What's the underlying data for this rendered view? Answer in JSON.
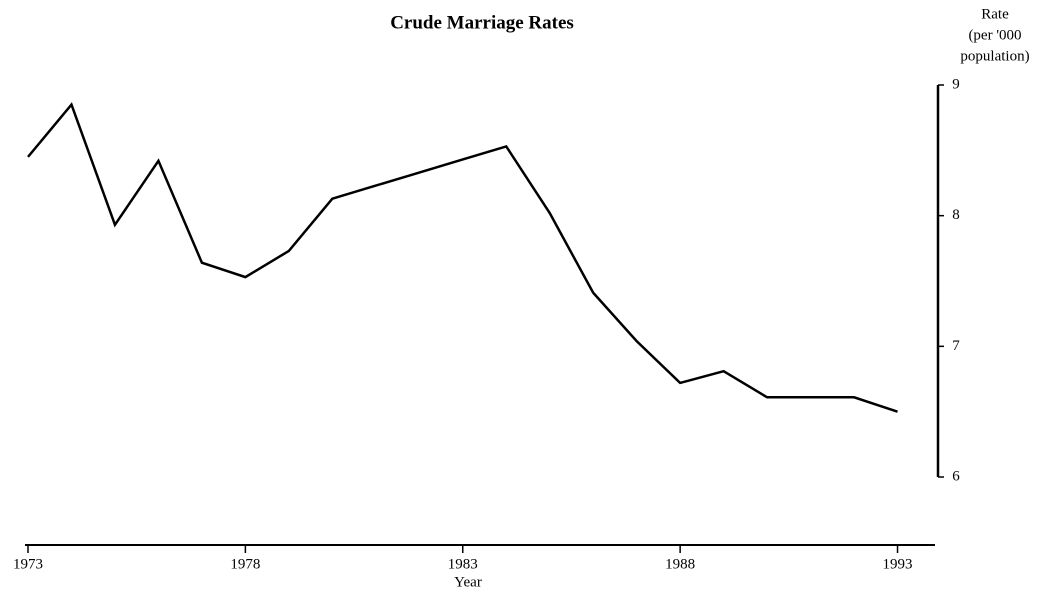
{
  "chart_data": {
    "type": "line",
    "title": "Crude Marriage Rates",
    "x_label": "Year",
    "y_label": [
      "Rate",
      "(per '000",
      "population)"
    ],
    "x": [
      1973,
      1974,
      1975,
      1976,
      1977,
      1978,
      1979,
      1980,
      1981,
      1982,
      1983,
      1984,
      1985,
      1986,
      1987,
      1988,
      1989,
      1990,
      1991,
      1992,
      1993
    ],
    "series": [
      {
        "name": "Crude marriage rate",
        "color": "#000000",
        "values": [
          8.45,
          8.85,
          7.93,
          8.42,
          7.64,
          7.53,
          7.73,
          8.13,
          8.23,
          8.33,
          8.43,
          8.53,
          8.02,
          7.41,
          7.04,
          6.72,
          6.81,
          6.61,
          6.61,
          6.61,
          6.5
        ]
      }
    ],
    "xlim": [
      1973,
      1994
    ],
    "xticks": [
      1973,
      1978,
      1983,
      1988,
      1993
    ],
    "ylim": [
      6,
      9
    ],
    "yticks": [
      6,
      7,
      8,
      9
    ],
    "y_axis_side": "right",
    "grid": false
  }
}
